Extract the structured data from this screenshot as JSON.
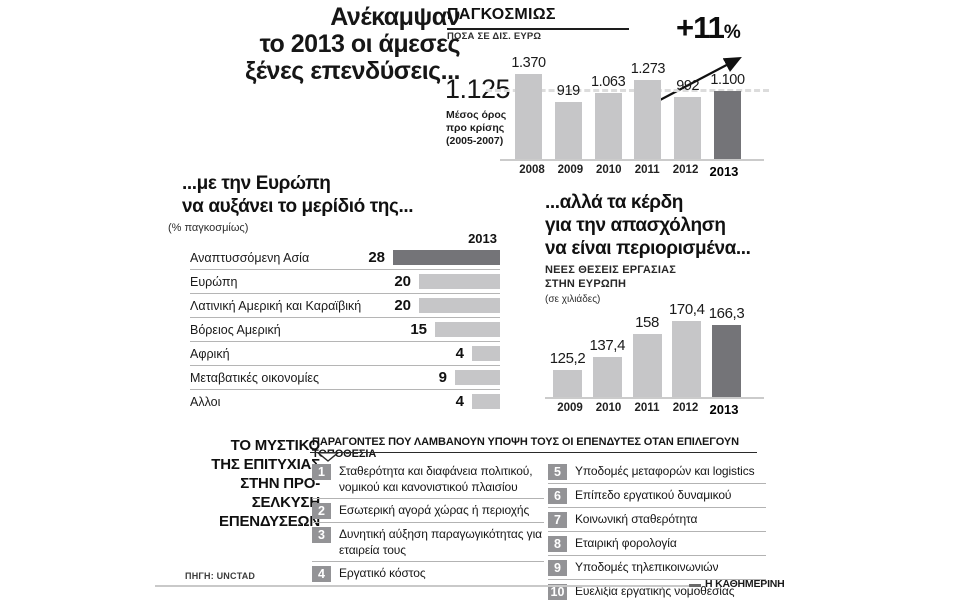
{
  "main_title_lines": [
    "Ανέκαμψαν",
    "το 2013 οι άμεσες",
    "ξένες επενδύσεις..."
  ],
  "factors": {
    "side_title_lines": [
      "ΤΟ ΜΥΣΤΙΚΟ",
      "ΤΗΣ ΕΠΙΤΥΧΙΑΣ",
      "ΣΤΗΝ ΠΡΟ-",
      "ΣΕΛΚΥΣΗ",
      "ΕΠΕΝΔΥΣΕΩΝ"
    ],
    "header": "ΠΑΡΑΓΟΝΤΕΣ ΠΟΥ ΛΑΜΒΑΝΟΥΝ ΥΠΟΨΗ ΤΟΥΣ ΟΙ ΕΠΕΝΔΥΤΕΣ ΟΤΑΝ ΕΠΙΛΕΓΟΥΝ ΤΟΠΟΘΕΣΙΑ",
    "items": [
      {
        "rank": "1",
        "text": "Σταθερότητα και διαφάνεια πολιτικού, νομικού και κανονιστικού πλαισίου"
      },
      {
        "rank": "2",
        "text": "Εσωτερική αγορά χώρας ή περιοχής"
      },
      {
        "rank": "3",
        "text": "Δυνητική αύξηση παραγωγικότητας για εταιρεία τους"
      },
      {
        "rank": "4",
        "text": "Εργατικό κόστος"
      },
      {
        "rank": "5",
        "text": "Υποδομές μεταφορών και logistics"
      },
      {
        "rank": "6",
        "text": "Επίπεδο εργατικού δυναμικού"
      },
      {
        "rank": "7",
        "text": "Κοινωνική σταθερότητα"
      },
      {
        "rank": "8",
        "text": "Εταιρική φορολογία"
      },
      {
        "rank": "9",
        "text": "Υποδομές τηλεπικοινωνιών"
      },
      {
        "rank": "10",
        "text": "Ευελιξία εργατικής νομοθεσίας"
      }
    ]
  },
  "footer": {
    "source": "ΠΗΓΗ: UNCTAD",
    "brand": "Η ΚΑΘΗΜΕΡΙΝΗ"
  },
  "colors": {
    "bar_light": "#c6c6c8",
    "bar_dark": "#747478",
    "rank_box": "#939396"
  },
  "chart_data": [
    {
      "id": "world_fdi",
      "type": "bar",
      "title": "ΠΑΓΚΟΣΜΙΩΣ",
      "subtitle": "ΠΟΣΑ ΣΕ ΔΙΣ. ΕΥΡΩ",
      "annotation": "+11%",
      "annotation_value": "+11",
      "annotation_suffix": "%",
      "categories": [
        "2008",
        "2009",
        "2010",
        "2011",
        "2012",
        "2013"
      ],
      "values": [
        1370,
        919,
        1063,
        1273,
        992,
        1100
      ],
      "value_labels": [
        "1.370",
        "919",
        "1.063",
        "1.273",
        "992",
        "1.100"
      ],
      "highlight_category": "2013",
      "reference_line": {
        "value": 1125,
        "label": "1.125",
        "description": "Μέσος όρος προ κρίσης (2005-2007)",
        "description_lines": [
          "Μέσος όρος",
          "προ κρίσης",
          "(2005-2007)"
        ]
      },
      "ylim": [
        0,
        1400
      ],
      "unit": "δισ. ευρώ",
      "grid": false,
      "legend_position": "none"
    },
    {
      "id": "fdi_share_2013",
      "type": "bar",
      "orientation": "horizontal",
      "title": "...με την Ευρώπη να αυξάνει το μερίδιό της...",
      "title_lines": [
        "...με την Ευρώπη",
        "να αυξάνει το μερίδιό της..."
      ],
      "subtitle": "(% παγκοσμίως)",
      "year_label": "2013",
      "categories": [
        "Αναπτυσσόμενη Ασία",
        "Ευρώπη",
        "Λατινική Αμερική και Καραϊβική",
        "Βόρειος Αμερική",
        "Αφρική",
        "Μεταβατικές οικονομίες",
        "Αλλοι"
      ],
      "values": [
        28,
        20,
        20,
        15,
        4,
        9,
        4
      ],
      "highlight_category": "Αναπτυσσόμενη Ασία",
      "xlim": [
        0,
        30
      ],
      "unit": "%",
      "grid": false
    },
    {
      "id": "new_jobs_europe",
      "type": "bar",
      "title": "...αλλά τα κέρδη για την απασχόληση να είναι περιορισμένα...",
      "title_lines": [
        "...αλλά τα κέρδη",
        "για την απασχόληση",
        "να είναι περιορισμένα..."
      ],
      "subtitle": "ΝΕΕΣ ΘΕΣΕΙΣ ΕΡΓΑΣΙΑΣ ΣΤΗΝ ΕΥΡΩΠΗ",
      "subtitle_lines": [
        "ΝΕΕΣ ΘΕΣΕΙΣ ΕΡΓΑΣΙΑΣ",
        "ΣΤΗΝ ΕΥΡΩΠΗ"
      ],
      "unit_label": "(σε χιλιάδες)",
      "categories": [
        "2009",
        "2010",
        "2011",
        "2012",
        "2013"
      ],
      "values": [
        125.2,
        137.4,
        158,
        170.4,
        166.3
      ],
      "value_labels": [
        "125,2",
        "137,4",
        "158",
        "170,4",
        "166,3"
      ],
      "highlight_category": "2013",
      "ylim": [
        100,
        175
      ],
      "unit": "χιλιάδες θέσεις",
      "grid": false
    }
  ]
}
